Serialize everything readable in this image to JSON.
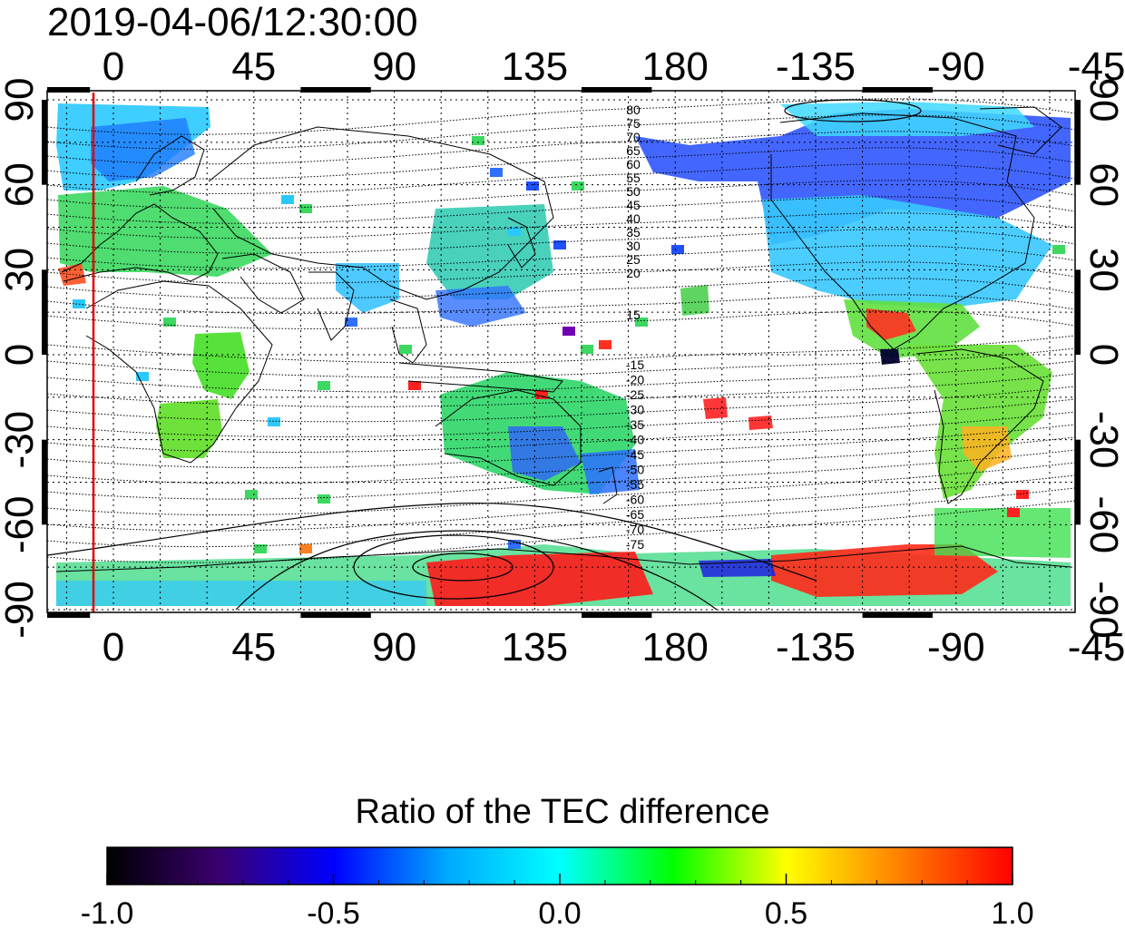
{
  "timestamp": "2019-04-06/12:30:00",
  "map": {
    "top_axis_labels": [
      "0",
      "45",
      "90",
      "135",
      "180",
      "-135",
      "-90",
      "-45"
    ],
    "bottom_axis_labels": [
      "0",
      "45",
      "90",
      "135",
      "180",
      "-135",
      "-90",
      "-45"
    ],
    "left_axis_labels": [
      "90",
      "60",
      "30",
      "0",
      "-30",
      "-60",
      "-90"
    ],
    "right_axis_labels": [
      "90",
      "60",
      "30",
      "0",
      "-30",
      "-60",
      "-90"
    ],
    "contour_labels_north": [
      "80",
      "75",
      "70",
      "65",
      "60",
      "55",
      "50",
      "45",
      "40",
      "35",
      "30",
      "25",
      "20",
      "15"
    ],
    "contour_labels_south": [
      "-15",
      "-20",
      "-25",
      "-30",
      "-35",
      "-40",
      "-45",
      "-50",
      "-55",
      "-60",
      "-65",
      "-70",
      "-75"
    ],
    "terminator_color": "#e00000"
  },
  "colorbar": {
    "title": "Ratio of the TEC difference",
    "tick_labels": [
      "-1.0",
      "-0.5",
      "0.0",
      "0.5",
      "1.0"
    ],
    "min": -1.0,
    "max": 1.0,
    "stops": [
      "#000000",
      "#3a0070",
      "#0000ff",
      "#00a8ff",
      "#00ffff",
      "#00ff00",
      "#ffff00",
      "#ff8000",
      "#ff0000"
    ]
  }
}
